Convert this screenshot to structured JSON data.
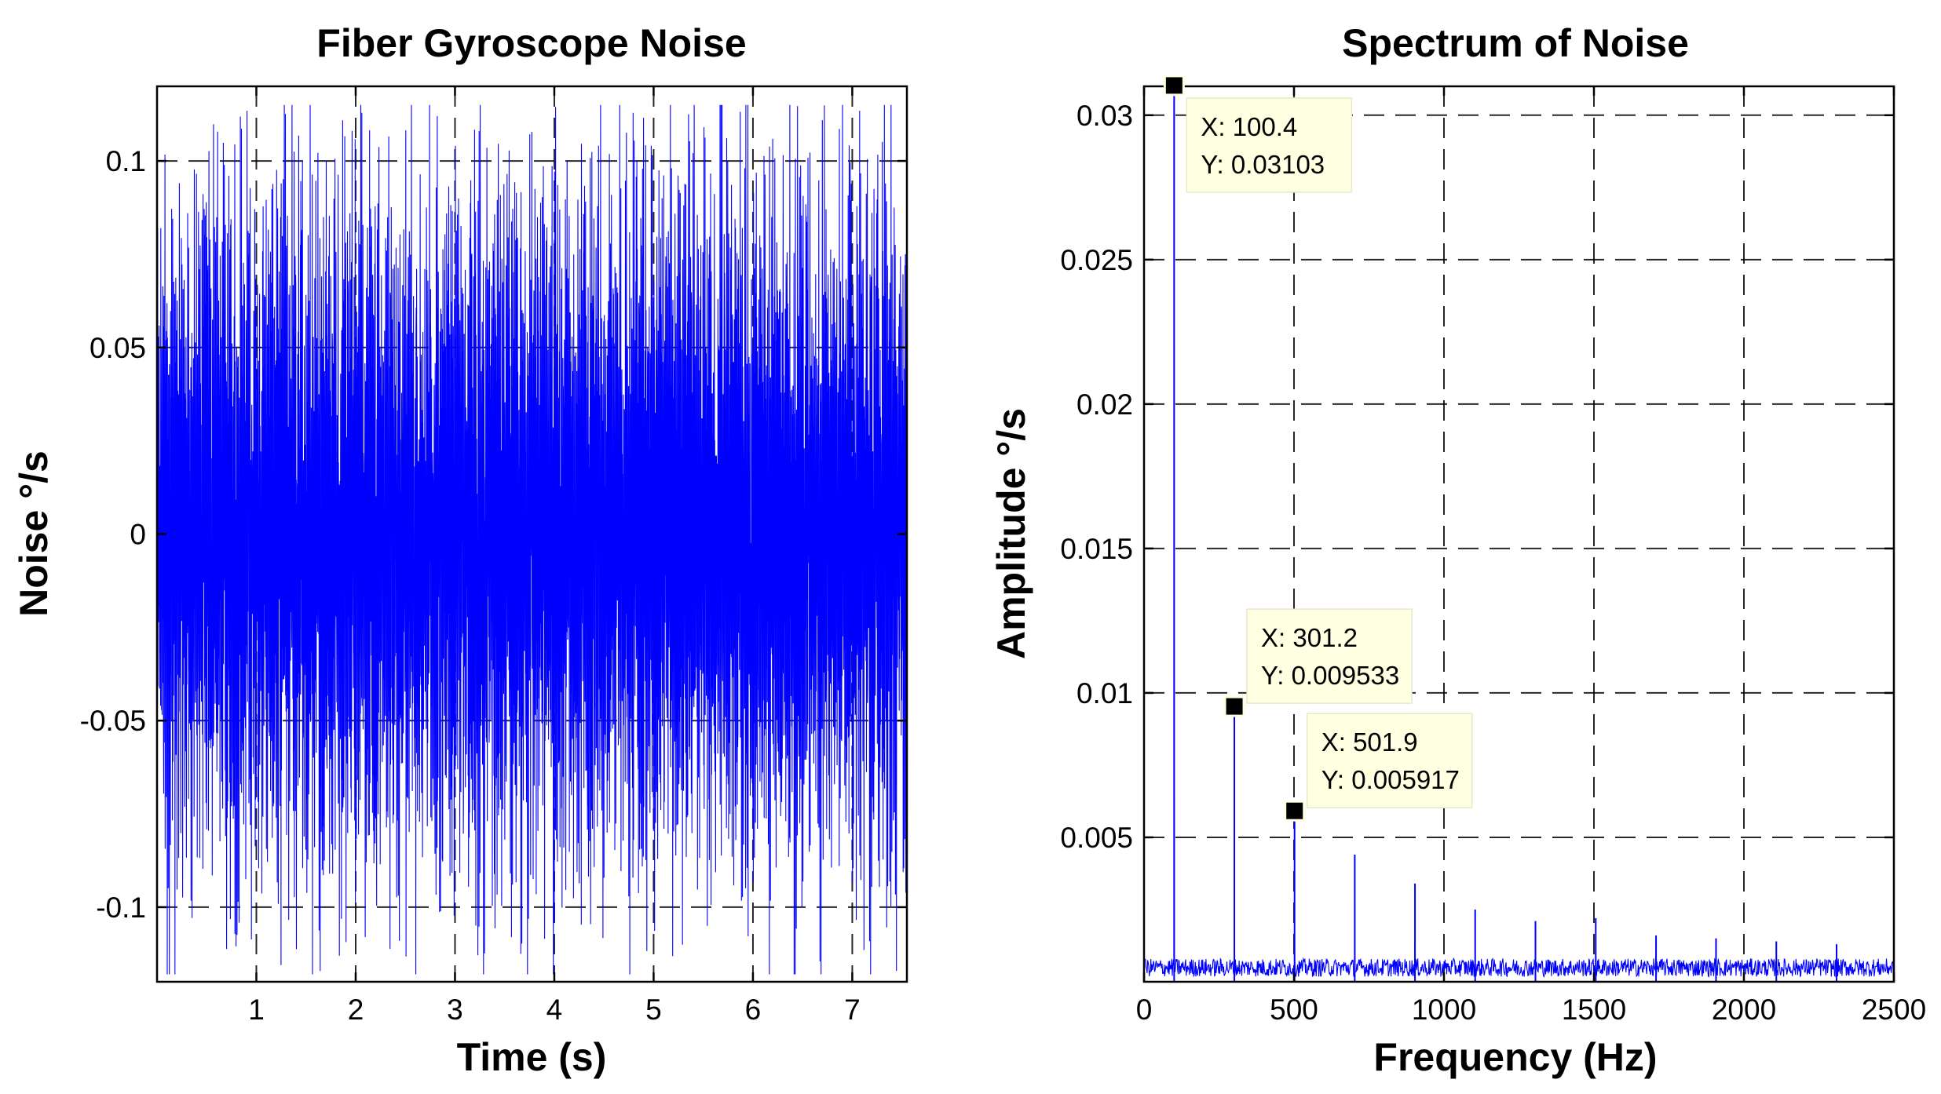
{
  "chart_data": [
    {
      "type": "line",
      "title": "Fiber Gyroscope Noise",
      "xlabel": "Time (s)",
      "ylabel": "Noise °/s",
      "xlim": [
        0,
        7.55
      ],
      "ylim": [
        -0.12,
        0.12
      ],
      "xticks": [
        1,
        2,
        3,
        4,
        5,
        6,
        7
      ],
      "xtick_labels": [
        "1",
        "2",
        "3",
        "4",
        "5",
        "6",
        "7"
      ],
      "yticks": [
        0.1,
        0.05,
        0,
        -0.05,
        -0.1
      ],
      "ytick_labels": [
        "0.1",
        "0.05",
        "0",
        "-0.05",
        "-0.1"
      ],
      "grid": true,
      "series": [
        {
          "name": "noise",
          "color": "#0000ff",
          "description_stats": {
            "min": -0.118,
            "max": 0.115,
            "typical_amplitude": 0.09
          }
        }
      ]
    },
    {
      "type": "line",
      "title": "Spectrum of Noise",
      "xlabel": "Frequency (Hz)",
      "ylabel": "Amplitude °/s",
      "xlim": [
        0,
        2500
      ],
      "ylim": [
        0,
        0.031
      ],
      "xticks": [
        0,
        500,
        1000,
        1500,
        2000,
        2500
      ],
      "xtick_labels": [
        "0",
        "500",
        "1000",
        "1500",
        "2000",
        "2500"
      ],
      "yticks": [
        0.005,
        0.01,
        0.015,
        0.02,
        0.025,
        0.03
      ],
      "ytick_labels": [
        "0.005",
        "0.01",
        "0.015",
        "0.02",
        "0.025",
        "0.03"
      ],
      "grid": true,
      "series": [
        {
          "name": "spectrum",
          "color": "#0000ff"
        }
      ],
      "peaks": [
        {
          "x": 100.4,
          "y": 0.03103
        },
        {
          "x": 301.2,
          "y": 0.009533
        },
        {
          "x": 501.9,
          "y": 0.005917
        },
        {
          "x": 702.6,
          "y": 0.0044
        },
        {
          "x": 903.3,
          "y": 0.0034
        },
        {
          "x": 1104,
          "y": 0.0025
        },
        {
          "x": 1305,
          "y": 0.0021
        },
        {
          "x": 1506,
          "y": 0.0022
        },
        {
          "x": 1707,
          "y": 0.0016
        },
        {
          "x": 1907,
          "y": 0.0015
        },
        {
          "x": 2108,
          "y": 0.0014
        },
        {
          "x": 2309,
          "y": 0.0013
        }
      ],
      "noise_floor": 0.0007,
      "datatips": [
        {
          "x": 100.4,
          "y": 0.03103,
          "label_x": "X: 100.4",
          "label_y": "Y: 0.03103"
        },
        {
          "x": 301.2,
          "y": 0.009533,
          "label_x": "X: 301.2",
          "label_y": "Y: 0.009533"
        },
        {
          "x": 501.9,
          "y": 0.005917,
          "label_x": "X: 501.9",
          "label_y": "Y: 0.005917"
        }
      ]
    }
  ]
}
